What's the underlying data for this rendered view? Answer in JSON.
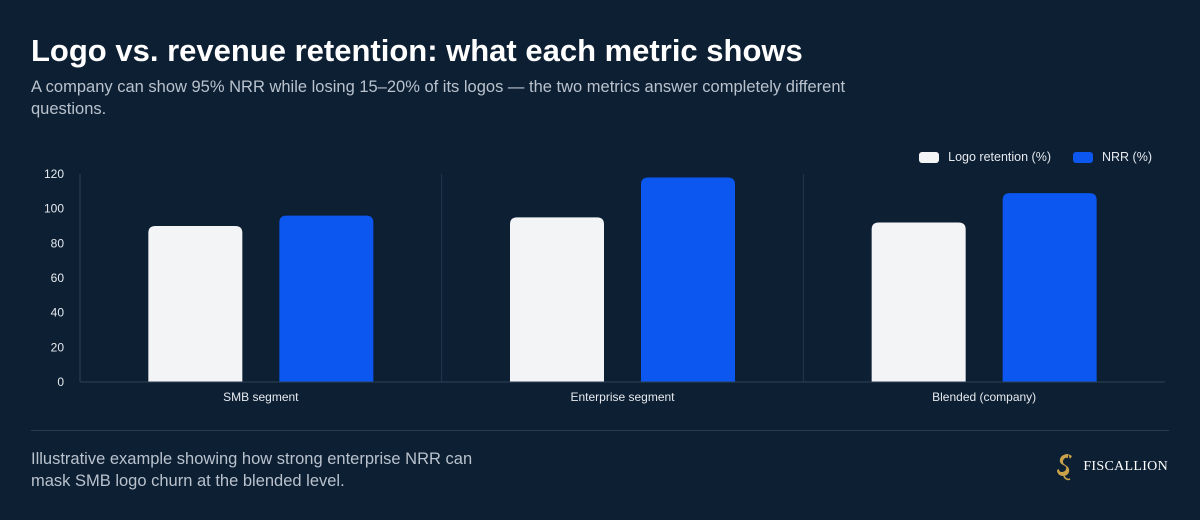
{
  "header": {
    "title": "Logo vs. revenue retention: what each metric shows",
    "subtitle": "A company can show 95% NRR while losing 15–20% of its logos — the two metrics answer completely different questions."
  },
  "footer": {
    "note": "Illustrative example showing how strong enterprise NRR can mask SMB logo churn at the blended level.",
    "brand": "FISCALLION"
  },
  "colors": {
    "background": "#0d1f33",
    "logo_retention": "#f3f4f6",
    "nrr": "#0b57f0",
    "brand_gold": "#c9a24a"
  },
  "chart_data": {
    "type": "bar",
    "categories": [
      "SMB segment",
      "Enterprise segment",
      "Blended (company)"
    ],
    "series": [
      {
        "name": "Logo retention (%)",
        "values": [
          90,
          95,
          92
        ]
      },
      {
        "name": "NRR (%)",
        "values": [
          96,
          118,
          109
        ]
      }
    ],
    "ylim": [
      0,
      120
    ],
    "yticks": [
      0,
      20,
      40,
      60,
      80,
      100,
      120
    ],
    "legend": "top-right",
    "grid": false
  }
}
